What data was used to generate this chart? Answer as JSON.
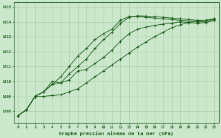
{
  "background_color": "#cce8cc",
  "grid_color": "#aaccaa",
  "line_color": "#1a5c1a",
  "text_color": "#1a5c1a",
  "xlabel": "Graphe pression niveau de la mer (hPa)",
  "ylim": [
    1007.2,
    1015.3
  ],
  "xlim": [
    -0.5,
    23.5
  ],
  "yticks": [
    1008,
    1009,
    1010,
    1011,
    1012,
    1013,
    1014,
    1015
  ],
  "xticks": [
    0,
    1,
    2,
    3,
    4,
    5,
    6,
    7,
    8,
    9,
    10,
    11,
    12,
    13,
    14,
    15,
    16,
    17,
    18,
    19,
    20,
    21,
    22,
    23
  ],
  "series1": [
    1007.7,
    1008.1,
    1009.0,
    1009.3,
    1010.0,
    1009.9,
    1010.1,
    1010.7,
    1010.8,
    1011.2,
    1011.6,
    1012.1,
    1012.7,
    1013.2,
    1013.5,
    1013.65,
    1013.75,
    1013.85,
    1013.9,
    1014.0,
    1013.95,
    1013.9,
    1013.95,
    1014.1
  ],
  "series2": [
    1007.7,
    1008.1,
    1009.0,
    1009.3,
    1009.8,
    1010.3,
    1011.0,
    1011.7,
    1012.2,
    1012.8,
    1013.2,
    1013.5,
    1014.1,
    1014.35,
    1014.35,
    1014.3,
    1014.25,
    1014.2,
    1014.15,
    1014.1,
    1014.05,
    1014.0,
    1014.0,
    1014.15
  ],
  "series3": [
    1007.7,
    1008.1,
    1009.0,
    1009.3,
    1009.8,
    1009.9,
    1010.5,
    1011.0,
    1011.5,
    1012.2,
    1012.8,
    1013.3,
    1013.9,
    1014.3,
    1014.4,
    1014.38,
    1014.35,
    1014.3,
    1014.25,
    1014.2,
    1014.15,
    1014.1,
    1014.1,
    1014.2
  ],
  "series4": [
    1007.7,
    1008.1,
    1009.0,
    1009.0,
    1009.05,
    1009.1,
    1009.3,
    1009.5,
    1009.9,
    1010.3,
    1010.7,
    1011.1,
    1011.5,
    1011.9,
    1012.3,
    1012.65,
    1013.0,
    1013.3,
    1013.6,
    1013.8,
    1013.95,
    1014.05,
    1014.1,
    1014.2
  ]
}
